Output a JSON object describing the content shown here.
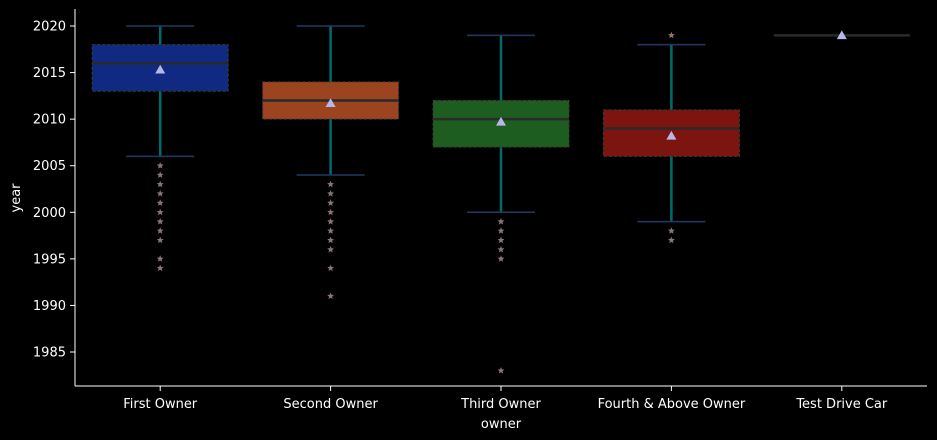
{
  "chart_data": {
    "type": "box",
    "xlabel": "owner",
    "ylabel": "year",
    "ylim": [
      1981.5,
      2022
    ],
    "yticks": [
      1985,
      1990,
      1995,
      2000,
      2005,
      2010,
      2015,
      2020
    ],
    "grid": false,
    "categories": [
      "First Owner",
      "Second Owner",
      "Third Owner",
      "Fourth & Above Owner",
      "Test Drive Car"
    ],
    "boxes": [
      {
        "category": "First Owner",
        "color": "#0f2a80",
        "whisker_low": 2006,
        "q1": 2013,
        "median": 2016,
        "q3": 2018,
        "whisker_high": 2020,
        "mean": 2015.3,
        "outliers": [
          2005,
          2004,
          2003,
          2002,
          2001,
          2000,
          1999,
          1998,
          1997,
          1995,
          1994
        ]
      },
      {
        "category": "Second Owner",
        "color": "#9c4420",
        "whisker_low": 2004,
        "q1": 2010,
        "median": 2012,
        "q3": 2014,
        "whisker_high": 2020,
        "mean": 2011.7,
        "outliers": [
          2003,
          2002,
          2001,
          2000,
          1999,
          1998,
          1997,
          1996,
          1994,
          1991
        ]
      },
      {
        "category": "Third Owner",
        "color": "#1d5e20",
        "whisker_low": 2000,
        "q1": 2007,
        "median": 2010,
        "q3": 2012,
        "whisker_high": 2019,
        "mean": 2009.7,
        "outliers": [
          1999,
          1998,
          1997,
          1996,
          1995,
          1983
        ]
      },
      {
        "category": "Fourth & Above Owner",
        "color": "#7c1510",
        "whisker_low": 1999,
        "q1": 2006,
        "median": 2009,
        "q3": 2011,
        "whisker_high": 2018,
        "mean": 2008.2,
        "outliers": [
          2019,
          1998,
          1997
        ]
      },
      {
        "category": "Test Drive Car",
        "color": "#1a1a1a",
        "whisker_low": 2019,
        "q1": 2019,
        "median": 2019,
        "q3": 2019,
        "whisker_high": 2019,
        "mean": 2019,
        "outliers": []
      }
    ],
    "style": {
      "whisker_color": "#006b6b",
      "cap_color": "#1f3a66",
      "median_color": "#2a2a2a",
      "mean_marker_color": "#b8b8e8",
      "outlier_color": "#8a7575"
    }
  }
}
